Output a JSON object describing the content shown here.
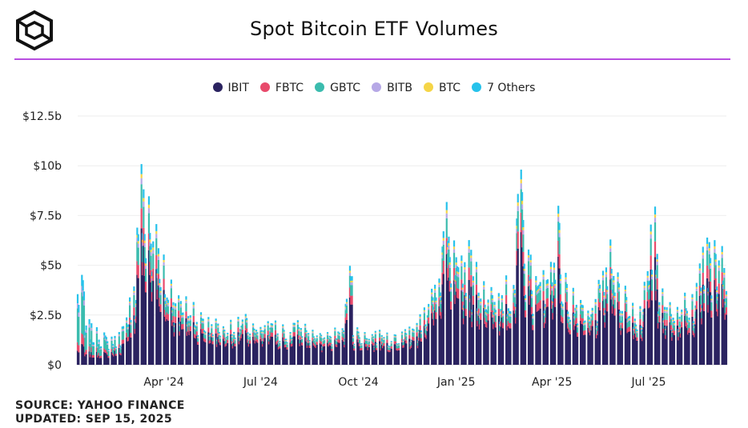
{
  "header": {
    "title": "Spot Bitcoin ETF Volumes",
    "logo_icon": "cube-logo-icon",
    "accent_color": "#b84ee0"
  },
  "footer": {
    "source": "SOURCE: YAHOO FINANCE",
    "updated": "UPDATED: SEP 15, 2025"
  },
  "chart_data": {
    "type": "bar",
    "stacked": true,
    "title": "Spot Bitcoin ETF Volumes",
    "xlabel": "",
    "ylabel": "",
    "ylim": [
      0,
      12.5
    ],
    "y_unit": "billions USD",
    "yticks": [
      0,
      2.5,
      5,
      7.5,
      10,
      12.5
    ],
    "ytick_labels": [
      "$0",
      "$2.5b",
      "$5b",
      "$7.5b",
      "$10b",
      "$12.5b"
    ],
    "grid": true,
    "legend_position": "top-center",
    "x_range": [
      "2024-01-11",
      "2025-09-12"
    ],
    "xtick_labels": [
      "Apr '24",
      "Jul '24",
      "Oct '24",
      "Jan '25",
      "Apr '25",
      "Jul '25"
    ],
    "xtick_dates": [
      "2024-04-01",
      "2024-07-01",
      "2024-10-01",
      "2025-01-01",
      "2025-04-01",
      "2025-07-01"
    ],
    "series": [
      {
        "name": "IBIT",
        "color": "#2b2360"
      },
      {
        "name": "FBTC",
        "color": "#e84a6b"
      },
      {
        "name": "GBTC",
        "color": "#3bbcae"
      },
      {
        "name": "BITB",
        "color": "#b6a8e6"
      },
      {
        "name": "BTC",
        "color": "#f5d547"
      },
      {
        "name": "7 Others",
        "color": "#26c2eb"
      }
    ],
    "weekly_total_volume_b": [
      4.5,
      2.2,
      1.8,
      1.6,
      1.4,
      1.6,
      2.3,
      4.0,
      9.8,
      8.5,
      7.0,
      5.5,
      4.3,
      3.6,
      3.3,
      3.1,
      2.7,
      2.4,
      2.3,
      2.0,
      2.2,
      2.3,
      2.5,
      2.1,
      1.9,
      2.2,
      2.3,
      2.0,
      1.7,
      2.3,
      2.1,
      1.8,
      1.6,
      1.7,
      1.8,
      1.9,
      5.2,
      1.9,
      1.7,
      1.6,
      1.8,
      1.7,
      1.6,
      1.7,
      1.9,
      2.1,
      3.0,
      3.8,
      4.5,
      7.8,
      6.0,
      5.3,
      6.2,
      5.0,
      4.4,
      3.8,
      3.6,
      4.6,
      4.0,
      9.4,
      6.0,
      4.6,
      4.8,
      5.2,
      7.7,
      4.5,
      3.8,
      3.2,
      2.7,
      3.3,
      4.5,
      6.0,
      4.8,
      3.9,
      3.1,
      2.9,
      4.7,
      7.6,
      4.0,
      3.1,
      3.0,
      3.5,
      3.7,
      5.3,
      6.5,
      6.3,
      5.7,
      4.2,
      4.6,
      6.0,
      4.6,
      3.8,
      3.7
    ],
    "composition_share": {
      "IBIT": 0.68,
      "FBTC": 0.1,
      "GBTC": 0.12,
      "BITB": 0.03,
      "BTC": 0.02,
      "7 Others": 0.05
    },
    "early_2024_composition_share": {
      "IBIT": 0.2,
      "FBTC": 0.12,
      "GBTC": 0.48,
      "BITB": 0.07,
      "BTC": 0.0,
      "7 Others": 0.13
    }
  }
}
